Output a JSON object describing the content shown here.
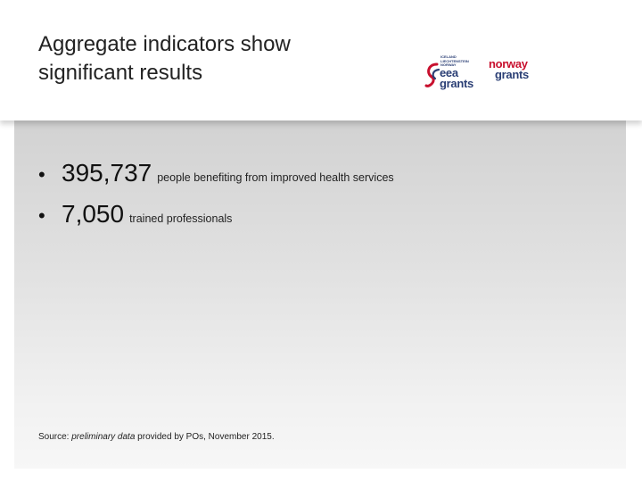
{
  "slide": {
    "title_line1": "Aggregate indicators show",
    "title_line2": "significant results",
    "bullets": [
      {
        "number": "395,737",
        "text": "people benefiting from improved health services"
      },
      {
        "number": "7,050",
        "text": "trained professionals"
      }
    ],
    "source": {
      "prefix": "Source: ",
      "italic": "preliminary data",
      "suffix": " provided by POs, November 2015."
    }
  },
  "logos": {
    "eea_small_lines": [
      "ICELAND",
      "LIECHTENSTEIN",
      "NORWAY"
    ],
    "eea_word1": "eea",
    "eea_word2": "grants",
    "norway_word1": "norway",
    "norway_word2": "grants"
  },
  "colors": {
    "brand_red": "#c8102e",
    "brand_blue": "#2b3f75"
  }
}
